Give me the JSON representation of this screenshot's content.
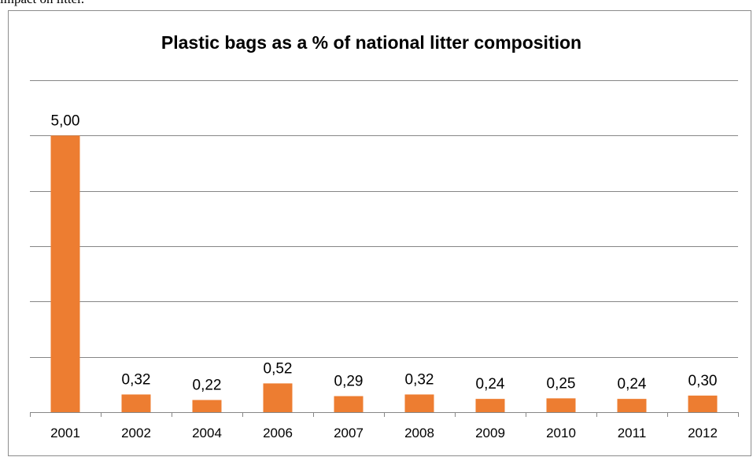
{
  "context_text": "impact on litter.",
  "colors": {
    "bar": "#ED7D31",
    "grid": "#868686",
    "axis": "#868686"
  },
  "chart_data": {
    "type": "bar",
    "title": "Plastic bags as a % of national litter composition",
    "categories": [
      "2001",
      "2002",
      "2004",
      "2006",
      "2007",
      "2008",
      "2009",
      "2010",
      "2011",
      "2012"
    ],
    "values": [
      5.0,
      0.32,
      0.22,
      0.52,
      0.29,
      0.32,
      0.24,
      0.25,
      0.24,
      0.3
    ],
    "data_labels": [
      "5,00",
      "0,32",
      "0,22",
      "0,52",
      "0,29",
      "0,32",
      "0,24",
      "0,25",
      "0,24",
      "0,30"
    ],
    "xlabel": "",
    "ylabel": "",
    "ylim": [
      0,
      6
    ],
    "grid": true,
    "legend": "none"
  }
}
